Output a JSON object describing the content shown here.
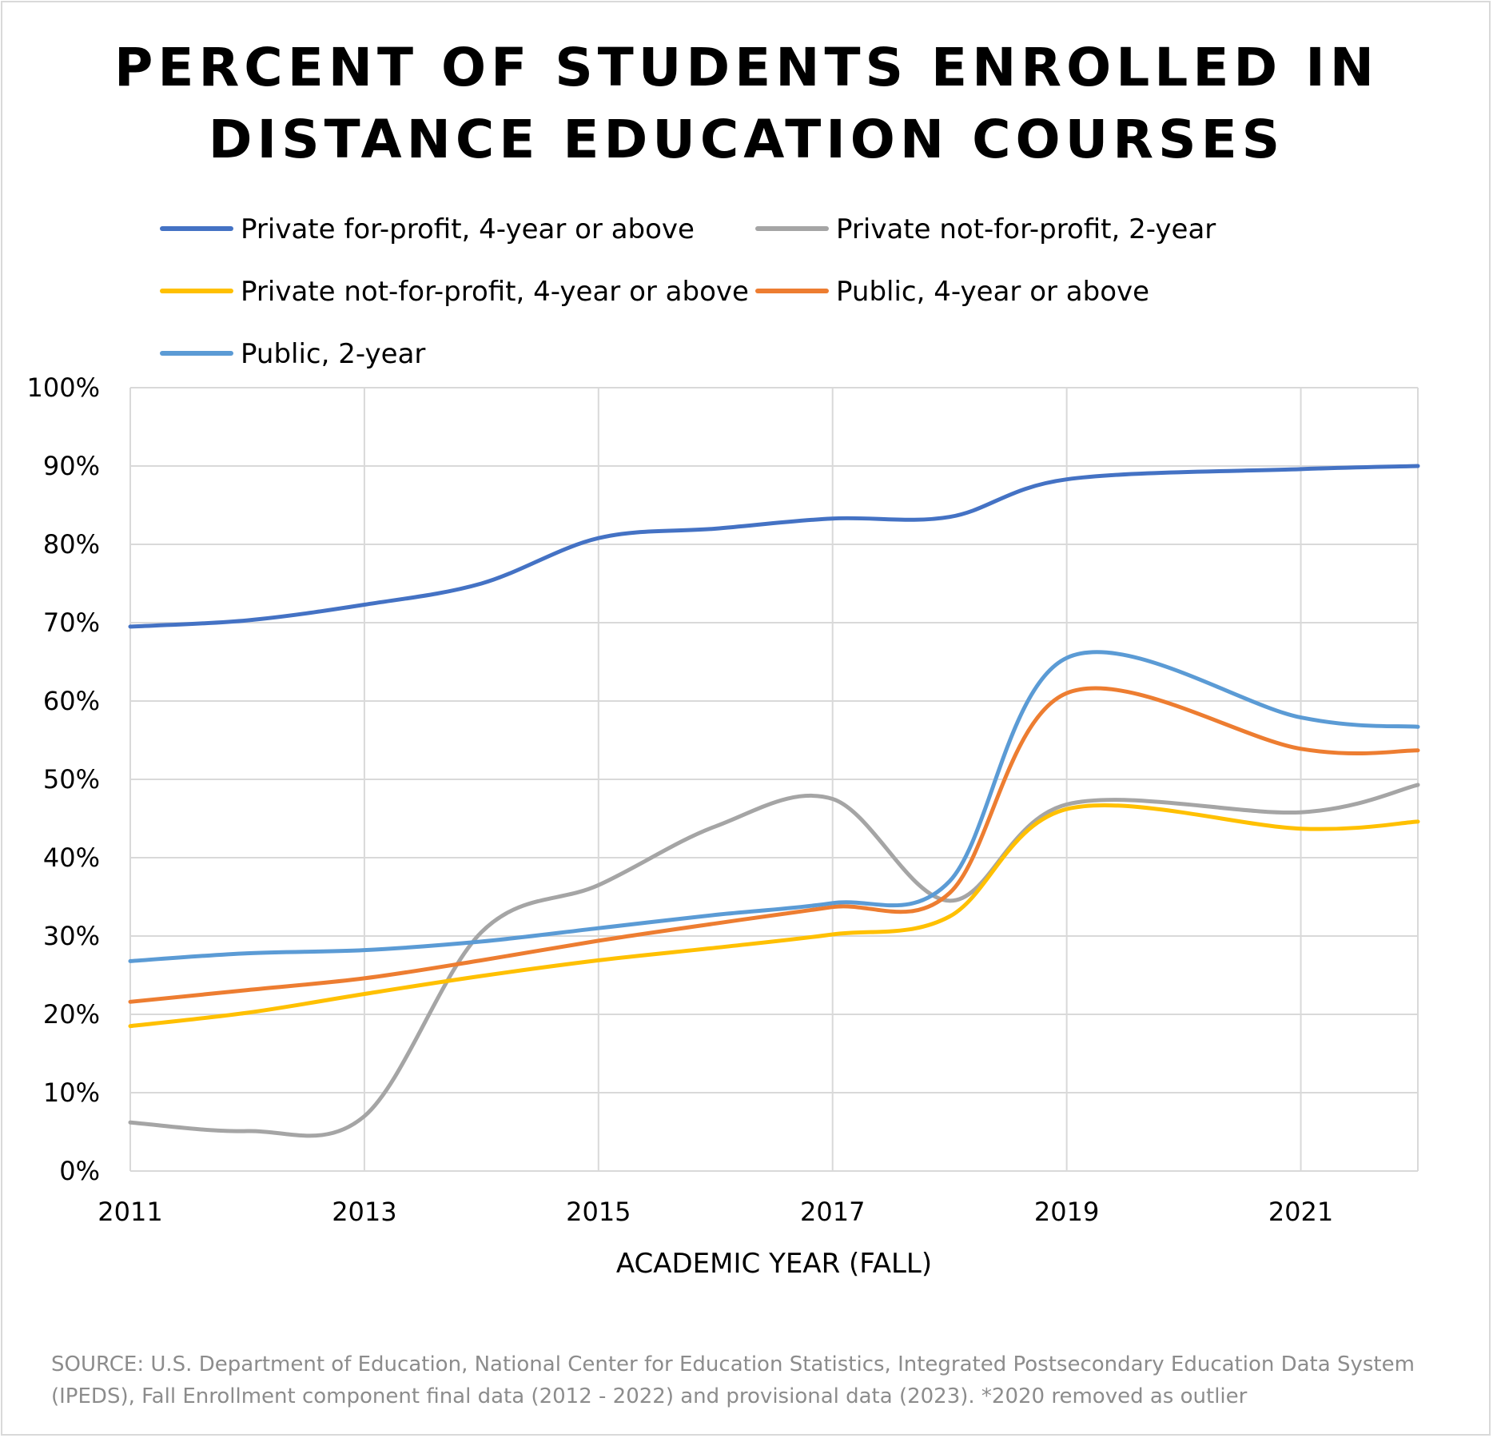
{
  "chart_data": {
    "type": "line",
    "title_lines": [
      "PERCENT OF STUDENTS ENROLLED IN",
      "DISTANCE EDUCATION COURSES"
    ],
    "xlabel": "ACADEMIC YEAR (FALL)",
    "ylabel": "",
    "x": [
      2011,
      2012,
      2013,
      2014,
      2015,
      2016,
      2017,
      2018,
      2019,
      2021,
      2022
    ],
    "x_ticks": [
      "2011",
      "2013",
      "2015",
      "2017",
      "2019",
      "2021"
    ],
    "xlim": [
      2011,
      2022
    ],
    "y_ticks": [
      "0%",
      "10%",
      "20%",
      "30%",
      "40%",
      "50%",
      "60%",
      "70%",
      "80%",
      "90%",
      "100%"
    ],
    "ylim": [
      0,
      100
    ],
    "grid": true,
    "legend_position": "top",
    "series": [
      {
        "name": "Private for-profit, 4-year or above",
        "color": "#4472c4",
        "values": [
          69.5,
          70.3,
          72.3,
          75.0,
          80.8,
          82.0,
          83.3,
          83.5,
          88.3,
          89.6,
          90.0
        ]
      },
      {
        "name": "Private not-for-profit, 2-year",
        "color": "#a5a5a5",
        "values": [
          6.2,
          5.1,
          7.0,
          30.5,
          36.5,
          44.0,
          47.5,
          34.5,
          46.8,
          45.8,
          49.3
        ]
      },
      {
        "name": "Private not-for-profit, 4-year or above",
        "color": "#ffc000",
        "values": [
          18.5,
          20.2,
          22.6,
          24.9,
          26.9,
          28.5,
          30.2,
          32.5,
          46.2,
          43.7,
          44.6
        ]
      },
      {
        "name": "Public, 4-year or above",
        "color": "#ed7d31",
        "values": [
          21.6,
          23.1,
          24.6,
          26.9,
          29.4,
          31.6,
          33.7,
          35.5,
          61.0,
          53.9,
          53.7
        ]
      },
      {
        "name": "Public, 2-year",
        "color": "#5b9bd5",
        "values": [
          26.8,
          27.8,
          28.2,
          29.3,
          31.0,
          32.7,
          34.2,
          37.0,
          65.5,
          57.9,
          56.7
        ]
      }
    ]
  },
  "source_lines": [
    "SOURCE: U.S. Department of Education, National Center for Education Statistics, Integrated Postsecondary Education Data System",
    "(IPEDS), Fall Enrollment component final data (2012 - 2022) and provisional data (2023). *2020 removed as outlier"
  ]
}
